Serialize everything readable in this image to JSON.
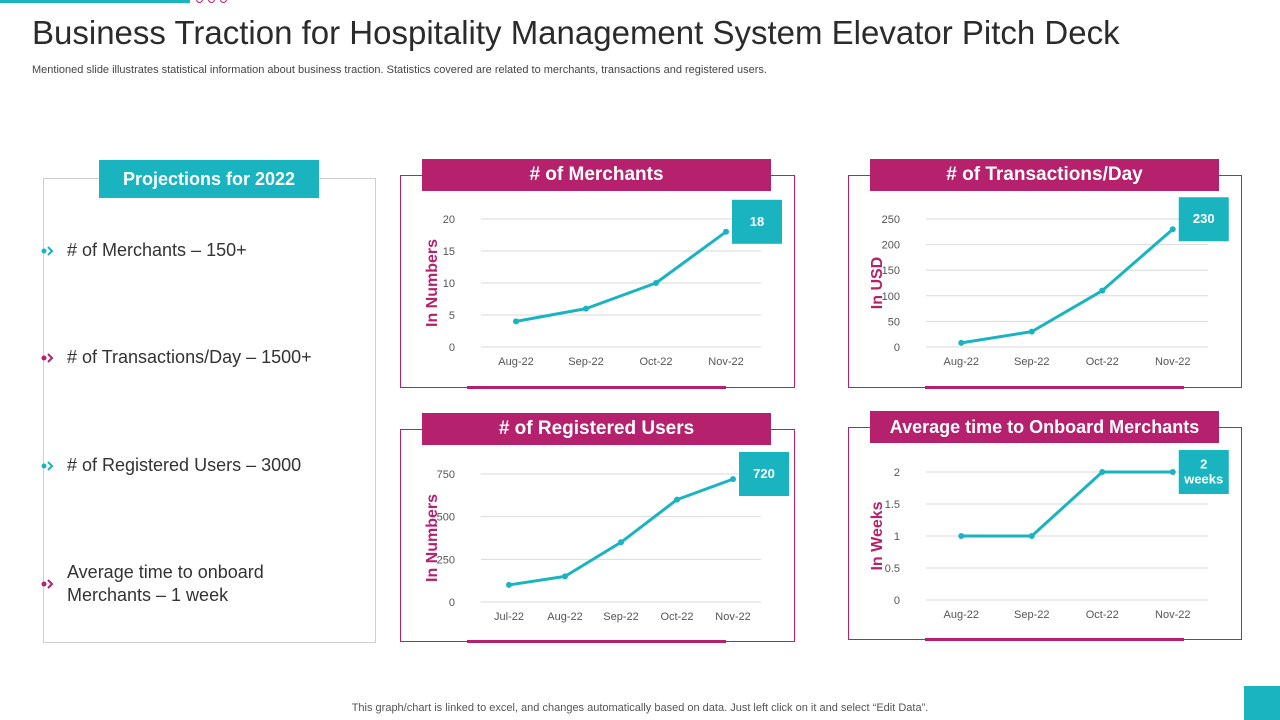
{
  "title": "Business Traction for Hospitality Management System Elevator Pitch Deck",
  "subtitle": "Mentioned slide illustrates statistical information about business traction. Statistics covered are related to merchants, transactions and registered users.",
  "projections": {
    "header": "Projections for 2022",
    "items": [
      {
        "text": "# of Merchants – 150+",
        "color": "#19b4c0"
      },
      {
        "text": "# of Transactions/Day – 1500+",
        "color": "#b5216d"
      },
      {
        "text": "# of Registered Users – 3000",
        "color": "#19b4c0"
      },
      {
        "text": "Average time to onboard Merchants – 1 week",
        "color": "#b5216d"
      }
    ]
  },
  "footer": "This graph/chart is linked to excel,  and changes automatically based on data. Just left click on it and select “Edit Data”.",
  "colors": {
    "accent": "#19b4c0",
    "brand": "#b5216d"
  },
  "chart_data": [
    {
      "type": "line",
      "title": "# of Merchants",
      "ylabel": "In Numbers",
      "categories": [
        "Aug-22",
        "Sep-22",
        "Oct-22",
        "Nov-22"
      ],
      "values": [
        4,
        6,
        10,
        18
      ],
      "yticks": [
        0,
        5,
        10,
        15,
        20
      ],
      "ylim": [
        0,
        20
      ],
      "callout": "18"
    },
    {
      "type": "line",
      "title": "# of Transactions/Day",
      "ylabel": "In USD",
      "categories": [
        "Aug-22",
        "Sep-22",
        "Oct-22",
        "Nov-22"
      ],
      "values": [
        8,
        30,
        110,
        230
      ],
      "yticks": [
        0,
        50,
        100,
        150,
        200,
        250
      ],
      "ylim": [
        0,
        250
      ],
      "callout": "230"
    },
    {
      "type": "line",
      "title": "# of Registered Users",
      "ylabel": "In Numbers",
      "categories": [
        "Jul-22",
        "Aug-22",
        "Sep-22",
        "Oct-22",
        "Nov-22"
      ],
      "values": [
        100,
        150,
        350,
        600,
        720
      ],
      "yticks": [
        0,
        250,
        500,
        750
      ],
      "ylim": [
        0,
        750
      ],
      "callout": "720"
    },
    {
      "type": "line",
      "title": "Average time to Onboard Merchants",
      "ylabel": "In Weeks",
      "categories": [
        "Aug-22",
        "Sep-22",
        "Oct-22",
        "Nov-22"
      ],
      "values": [
        1,
        1,
        2,
        2
      ],
      "yticks": [
        0,
        0.5,
        1,
        1.5,
        2
      ],
      "ylim": [
        0,
        2
      ],
      "callout": "2 weeks"
    }
  ]
}
